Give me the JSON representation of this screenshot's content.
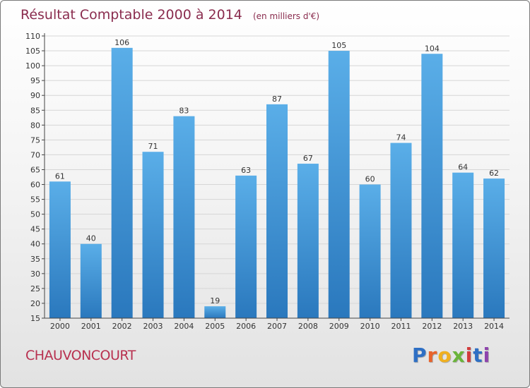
{
  "header": {
    "title": "Résultat Comptable 2000 à 2014",
    "subtitle": "(en milliers d'€)"
  },
  "commune": "CHAUVONCOURT",
  "logo": {
    "letters": [
      "P",
      "r",
      "o",
      "x",
      "i",
      "t",
      "i"
    ],
    "colors": [
      "#2e6fc4",
      "#e8632b",
      "#f0b020",
      "#6ab43a",
      "#d23c3c",
      "#2e6fc4",
      "#8e44ad"
    ]
  },
  "colors": {
    "bar_top": "#5aaee8",
    "bar_bottom": "#2a78bd",
    "title": "#8a2c4e"
  },
  "chart_data": {
    "type": "bar",
    "title": "Résultat Comptable 2000 à 2014",
    "subtitle": "(en milliers d'€)",
    "categories": [
      "2000",
      "2001",
      "2002",
      "2003",
      "2004",
      "2005",
      "2006",
      "2007",
      "2008",
      "2009",
      "2010",
      "2011",
      "2012",
      "2013",
      "2014"
    ],
    "values": [
      61,
      40,
      106,
      71,
      83,
      19,
      63,
      87,
      67,
      105,
      60,
      74,
      104,
      64,
      62
    ],
    "ylim": [
      15,
      110
    ],
    "yticks": [
      15,
      20,
      25,
      30,
      35,
      40,
      45,
      50,
      55,
      60,
      65,
      70,
      75,
      80,
      85,
      90,
      95,
      100,
      105,
      110
    ],
    "grid": true,
    "data_labels": true
  }
}
